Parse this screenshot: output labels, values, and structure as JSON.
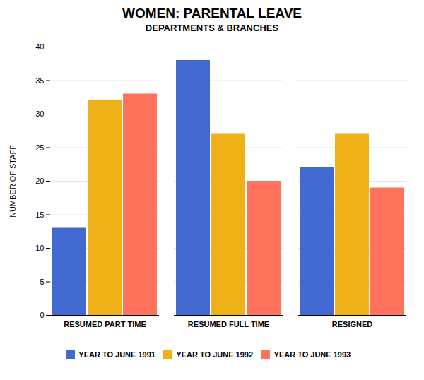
{
  "chart_data": {
    "type": "bar",
    "title": "WOMEN: PARENTAL LEAVE",
    "subtitle": "DEPARTMENTS & BRANCHES",
    "categories": [
      "RESUMED PART TIME",
      "RESUMED FULL TIME",
      "RESIGNED"
    ],
    "series": [
      {
        "name": "YEAR TO JUNE 1991",
        "values": [
          13,
          38,
          22
        ]
      },
      {
        "name": "YEAR TO JUNE 1992",
        "values": [
          32,
          27,
          27
        ]
      },
      {
        "name": "YEAR TO JUNE 1993",
        "values": [
          33,
          20,
          19
        ]
      }
    ],
    "ylabel": "NUMBER OF STAFF",
    "ylim": [
      0,
      40
    ],
    "yticks": [
      0,
      5,
      10,
      15,
      20,
      25,
      30,
      35,
      40
    ],
    "grid": true,
    "legend": "bottom"
  }
}
